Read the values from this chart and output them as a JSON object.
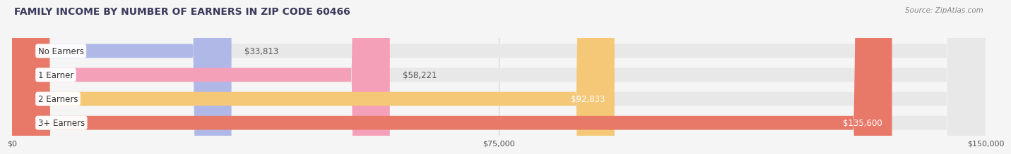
{
  "title": "FAMILY INCOME BY NUMBER OF EARNERS IN ZIP CODE 60466",
  "source": "Source: ZipAtlas.com",
  "categories": [
    "No Earners",
    "1 Earner",
    "2 Earners",
    "3+ Earners"
  ],
  "values": [
    33813,
    58221,
    92833,
    135600
  ],
  "value_labels": [
    "$33,813",
    "$58,221",
    "$92,833",
    "$135,600"
  ],
  "bar_colors": [
    "#b0b8e8",
    "#f4a0b8",
    "#f5c878",
    "#e87868"
  ],
  "bar_bg_color": "#e8e8e8",
  "background_color": "#f5f5f5",
  "xlim": [
    0,
    150000
  ],
  "xtick_values": [
    0,
    75000,
    150000
  ],
  "xtick_labels": [
    "$0",
    "$75,000",
    "$150,000"
  ],
  "title_color": "#3a3a5c",
  "title_fontsize": 10,
  "source_fontsize": 7.5,
  "label_fontsize": 8.5,
  "value_fontsize": 8.5
}
